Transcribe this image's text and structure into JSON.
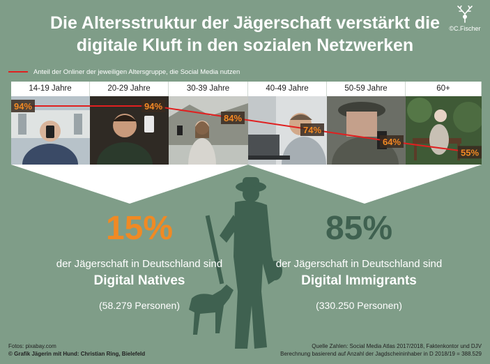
{
  "title": {
    "line1": "Die Altersstruktur der Jägerschaft verstärkt die",
    "line2": "digitale Kluft in den sozialen Netzwerken"
  },
  "logo": {
    "text": "©C.Fischer",
    "icon": "deer-antler-icon"
  },
  "legend": {
    "label": "Anteil der Onliner der jeweiligen Altersgruppe, die Social Media nutzen",
    "color": "#e02020"
  },
  "chart_data": {
    "type": "line",
    "categories": [
      "14-19 Jahre",
      "20-29 Jahre",
      "30-39 Jahre",
      "40-49 Jahre",
      "50-59 Jahre",
      "60+"
    ],
    "series": [
      {
        "values": [
          94,
          94,
          84,
          74,
          64,
          55
        ]
      }
    ],
    "data_labels": [
      "94%",
      "94%",
      "84%",
      "74%",
      "64%",
      "55%"
    ],
    "unit": "%",
    "line_color": "#e02020"
  },
  "left": {
    "percent": "15%",
    "text": "der Jägerschaft in Deutschland sind",
    "group": "Digital Natives",
    "count": "(58.279 Personen)",
    "color": "#f08a24"
  },
  "right": {
    "percent": "85%",
    "text": "der Jägerschaft in Deutschland sind",
    "group": "Digital Immigrants",
    "count": "(330.250 Personen)",
    "color": "#3f6150"
  },
  "footer": {
    "left1": "Fotos: pixabay.com",
    "left2": "© Grafik Jägerin mit Hund: Christian Ring, Bielefeld",
    "right1": "Quelle Zahlen: Social Media Atlas 2017/2018, Faktenkontor und DJV",
    "right2": "Berechnung basierend auf Anzahl der Jagdscheininhaber in D 2018/19 = 388.529"
  }
}
